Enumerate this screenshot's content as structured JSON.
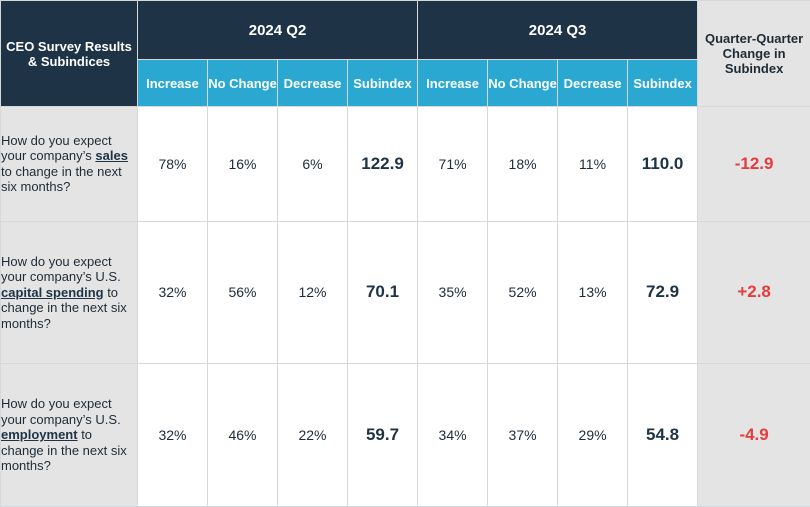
{
  "colors": {
    "header_navy": "#1e3346",
    "subheader_blue": "#2aa8d1",
    "negative_red": "#e63c3c",
    "row_label_grey": "#e4e4e4"
  },
  "chart_data": {
    "type": "table",
    "corner_label": "CEO Survey Results & Subindices",
    "quarters": [
      "2024 Q2",
      "2024 Q3"
    ],
    "subcolumns": [
      "Increase",
      "No Change",
      "Decrease",
      "Subindex"
    ],
    "change_header": "Quarter-Quarter Change in Subindex",
    "rows": [
      {
        "question_before": "How do you expect your company’s ",
        "question_keyword": "sales",
        "question_after": " to change in the next six months?",
        "q2": {
          "increase": "78%",
          "no_change": "16%",
          "decrease": "6%",
          "subindex": "122.9"
        },
        "q3": {
          "increase": "71%",
          "no_change": "18%",
          "decrease": "11%",
          "subindex": "110.0"
        },
        "change": "-12.9",
        "change_color": "#e63c3c"
      },
      {
        "question_before": "How do you expect your company’s U.S. ",
        "question_keyword": "capital spending",
        "question_after": " to change in the next six months?",
        "q2": {
          "increase": "32%",
          "no_change": "56%",
          "decrease": "12%",
          "subindex": "70.1"
        },
        "q3": {
          "increase": "35%",
          "no_change": "52%",
          "decrease": "13%",
          "subindex": "72.9"
        },
        "change": "+2.8",
        "change_color": "#e63c3c"
      },
      {
        "question_before": "How do you expect your company’s U.S. ",
        "question_keyword": "employment",
        "question_after": " to change in the next six months?",
        "q2": {
          "increase": "32%",
          "no_change": "46%",
          "decrease": "22%",
          "subindex": "59.7"
        },
        "q3": {
          "increase": "34%",
          "no_change": "37%",
          "decrease": "29%",
          "subindex": "54.8"
        },
        "change": "-4.9",
        "change_color": "#e63c3c"
      }
    ]
  }
}
